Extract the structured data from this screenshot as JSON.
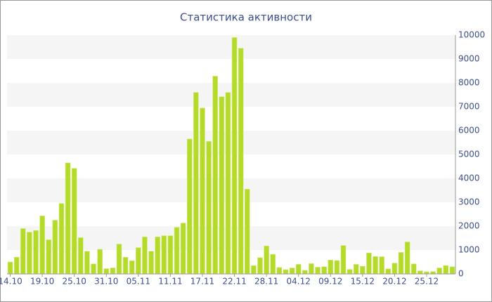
{
  "chart_data": {
    "type": "bar",
    "title": "Статистика активности",
    "categories": [
      "14.10",
      null,
      null,
      null,
      null,
      "19.10",
      null,
      null,
      null,
      null,
      "25.10",
      null,
      null,
      null,
      null,
      "31.10",
      null,
      null,
      null,
      null,
      "05.11",
      null,
      null,
      null,
      null,
      "11.11",
      null,
      null,
      null,
      null,
      "17.11",
      null,
      null,
      null,
      null,
      "22.11",
      null,
      null,
      null,
      null,
      "28.11",
      null,
      null,
      null,
      null,
      "04.12",
      null,
      null,
      null,
      null,
      "09.12",
      null,
      null,
      null,
      null,
      "15.12",
      null,
      null,
      null,
      null,
      "20.12",
      null,
      null,
      null,
      null,
      "25.12",
      null,
      null,
      null,
      null
    ],
    "values": [
      500,
      700,
      1900,
      1750,
      1820,
      2430,
      1430,
      2250,
      2950,
      4650,
      4420,
      1520,
      950,
      420,
      1030,
      220,
      250,
      1250,
      700,
      550,
      1100,
      1550,
      950,
      1550,
      1600,
      1600,
      1950,
      2130,
      5650,
      7600,
      6950,
      5550,
      8280,
      7420,
      7600,
      9900,
      9450,
      3550,
      350,
      680,
      1170,
      820,
      270,
      180,
      250,
      400,
      150,
      430,
      280,
      300,
      580,
      560,
      1190,
      190,
      400,
      320,
      880,
      730,
      720,
      210,
      450,
      900,
      1340,
      420,
      130,
      90,
      100,
      250,
      350,
      300
    ],
    "color": "#b4da2a",
    "ylim": [
      0,
      10000
    ],
    "yticks": [
      0,
      1000,
      2000,
      3000,
      4000,
      5000,
      6000,
      7000,
      8000,
      9000,
      10000
    ]
  }
}
